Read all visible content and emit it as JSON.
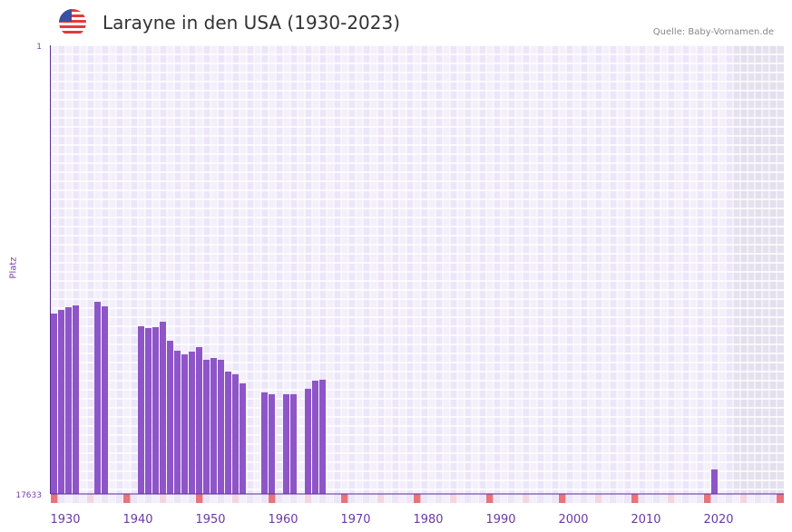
{
  "title": "Larayne in den USA (1930-2023)",
  "source": "Quelle: Baby-Vornamen.de",
  "flag_icon": "us-flag-icon",
  "colors": {
    "bar": "#8e55c8",
    "axis": "#5a2d91",
    "decade_marker": "#e8737a",
    "half_marker": "#f4d6e0",
    "future_shade": "#e0dcea"
  },
  "chart_data": {
    "type": "bar",
    "title": "Larayne in den USA (1930-2023)",
    "xlabel": "",
    "ylabel": "Platz",
    "ylim": [
      1,
      17633
    ],
    "y_inverted": true,
    "y_tick_labels": [
      "1",
      "17633"
    ],
    "xlim": [
      1930,
      2030
    ],
    "x_tick_labels": [
      "1930",
      "1940",
      "1950",
      "1960",
      "1970",
      "1980",
      "1990",
      "2000",
      "2010",
      "2020"
    ],
    "data_end_year": 2023,
    "grid": true,
    "x": [
      1930,
      1931,
      1932,
      1933,
      1936,
      1937,
      1942,
      1943,
      1944,
      1945,
      1946,
      1947,
      1948,
      1949,
      1950,
      1951,
      1952,
      1953,
      1954,
      1955,
      1956,
      1959,
      1960,
      1962,
      1963,
      1965,
      1966,
      1967,
      2021
    ],
    "values": [
      10545,
      10402,
      10295,
      10224,
      10082,
      10260,
      11043,
      11114,
      11079,
      10865,
      11613,
      12005,
      12147,
      12040,
      11862,
      12361,
      12290,
      12361,
      12824,
      12931,
      13287,
      13643,
      13714,
      13714,
      13714,
      13500,
      13180,
      13144,
      16671
    ]
  }
}
